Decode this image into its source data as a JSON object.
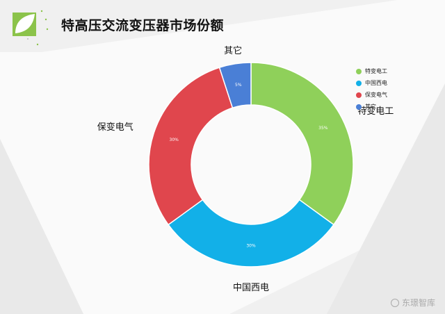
{
  "title": "特高压交流变压器市场份额",
  "watermark": "东璟智库",
  "chart_data": {
    "type": "pie",
    "donut": true,
    "categories": [
      "特变电工",
      "中国西电",
      "保变电气",
      "其它"
    ],
    "values": [
      35,
      30,
      30,
      5
    ],
    "value_labels": [
      "35%",
      "30%",
      "30%",
      "5%"
    ],
    "colors": [
      "#8fd05a",
      "#12b0e8",
      "#e0464d",
      "#4a7fd6"
    ],
    "legend": {
      "position": "top-right",
      "entries": [
        "特变电工",
        "中国西电",
        "保变电气",
        "其它"
      ]
    }
  }
}
